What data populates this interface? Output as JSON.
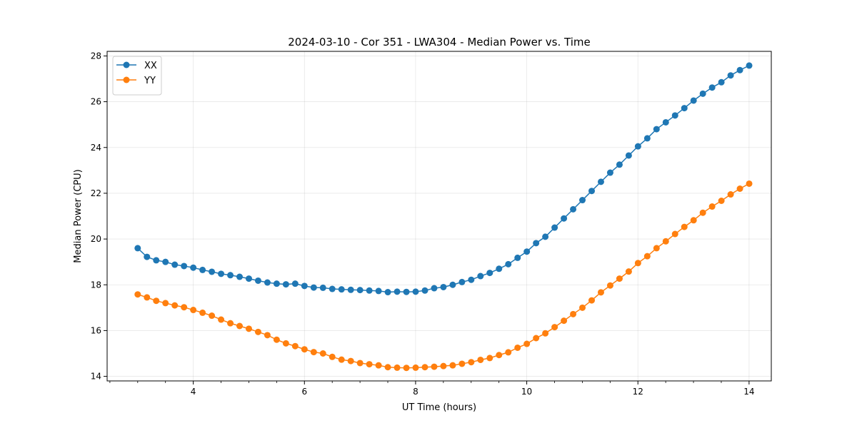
{
  "chart_data": {
    "type": "line",
    "title": "2024-03-10 - Cor 351 - LWA304 - Median Power vs. Time",
    "xlabel": "UT Time (hours)",
    "ylabel": "Median Power (CPU)",
    "xlim": [
      2.45,
      14.4
    ],
    "ylim": [
      13.8,
      28.2
    ],
    "xticks": [
      4,
      6,
      8,
      10,
      12,
      14
    ],
    "yticks": [
      14,
      16,
      18,
      20,
      22,
      24,
      26,
      28
    ],
    "minor_xtick_step": 0.5,
    "grid": true,
    "legend_position": "top-left",
    "x_start": 3.0,
    "x_step": 0.1667,
    "series": [
      {
        "name": "XX",
        "color": "#1f77b4",
        "values": [
          19.6,
          19.22,
          19.07,
          19.0,
          18.88,
          18.82,
          18.75,
          18.65,
          18.57,
          18.48,
          18.42,
          18.35,
          18.27,
          18.18,
          18.1,
          18.05,
          18.02,
          18.05,
          17.95,
          17.88,
          17.87,
          17.82,
          17.8,
          17.78,
          17.77,
          17.75,
          17.73,
          17.68,
          17.7,
          17.69,
          17.7,
          17.75,
          17.85,
          17.9,
          18.0,
          18.12,
          18.22,
          18.38,
          18.52,
          18.7,
          18.9,
          19.18,
          19.45,
          19.82,
          20.1,
          20.5,
          20.9,
          21.3,
          21.7,
          22.1,
          22.5,
          22.9,
          23.25,
          23.65,
          24.05,
          24.4,
          24.8,
          25.1,
          25.4,
          25.72,
          26.05,
          26.35,
          26.62,
          26.85,
          27.15,
          27.38,
          27.58
        ]
      },
      {
        "name": "YY",
        "color": "#ff7f0e",
        "values": [
          17.58,
          17.45,
          17.3,
          17.2,
          17.1,
          17.02,
          16.9,
          16.78,
          16.65,
          16.48,
          16.32,
          16.2,
          16.08,
          15.94,
          15.8,
          15.6,
          15.44,
          15.32,
          15.18,
          15.06,
          15.0,
          14.85,
          14.73,
          14.67,
          14.58,
          14.53,
          14.48,
          14.4,
          14.38,
          14.37,
          14.38,
          14.4,
          14.42,
          14.45,
          14.48,
          14.55,
          14.62,
          14.72,
          14.8,
          14.93,
          15.05,
          15.25,
          15.42,
          15.67,
          15.88,
          16.15,
          16.43,
          16.72,
          17.0,
          17.32,
          17.67,
          17.97,
          18.27,
          18.58,
          18.95,
          19.25,
          19.6,
          19.9,
          20.22,
          20.53,
          20.82,
          21.15,
          21.42,
          21.67,
          21.95,
          22.2,
          22.42
        ]
      }
    ]
  }
}
